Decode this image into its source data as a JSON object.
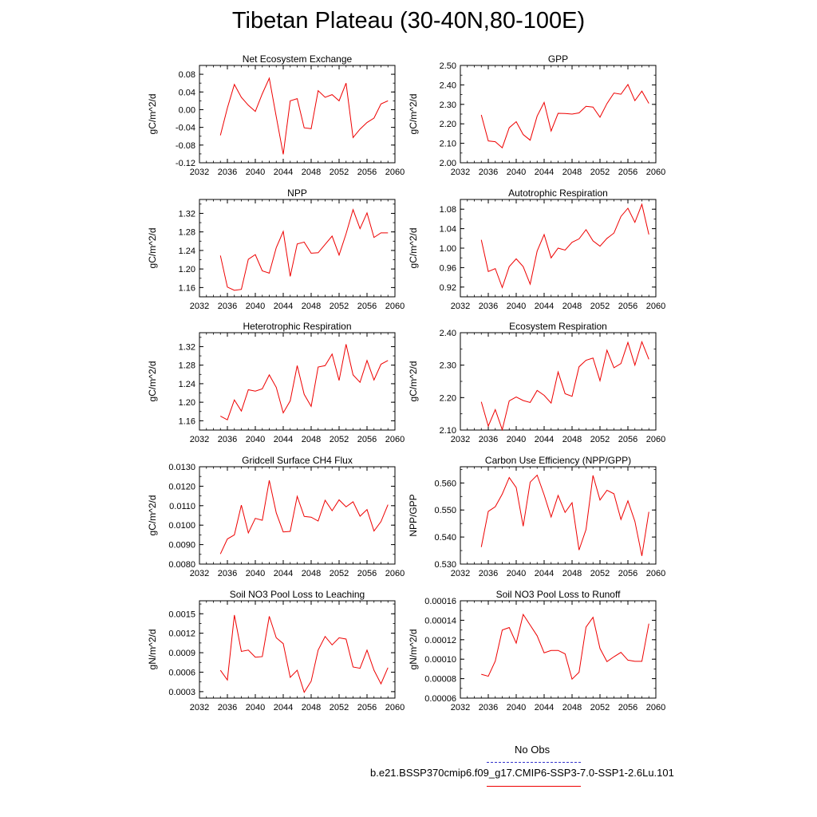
{
  "page": {
    "title": "Tibetan Plateau (30-40N,80-100E)"
  },
  "legend": {
    "items": [
      {
        "label": "No Obs",
        "color": "#3333cc",
        "style": "dashed"
      },
      {
        "label": "b.e21.BSSP370cmip6.f09_g17.CMIP6-SSP3-7.0-SSP1-2.6Lu.101",
        "color": "#ee0000",
        "style": "solid"
      }
    ]
  },
  "chart_data": [
    {
      "type": "line",
      "title": "Net Ecosystem Exchange",
      "ylabel": "gC/m^2/d",
      "xlabel": "",
      "xlim": [
        2032,
        2060
      ],
      "ylim": [
        -0.12,
        0.1
      ],
      "xticks": [
        2032,
        2036,
        2040,
        2044,
        2048,
        2052,
        2056,
        2060
      ],
      "yticks": [
        "-0.12",
        "-0.08",
        "-0.04",
        "0.00",
        "0.04",
        "0.08"
      ],
      "x": [
        2035,
        2036,
        2037,
        2038,
        2039,
        2040,
        2041,
        2042,
        2043,
        2044,
        2045,
        2046,
        2047,
        2048,
        2049,
        2050,
        2051,
        2052,
        2053,
        2054,
        2055,
        2056,
        2057,
        2058,
        2059
      ],
      "series": [
        {
          "values": [
            -0.058,
            0.004,
            0.057,
            0.028,
            0.01,
            -0.004,
            0.036,
            0.071,
            -0.016,
            -0.101,
            0.02,
            0.025,
            -0.041,
            -0.043,
            0.043,
            0.028,
            0.034,
            0.02,
            0.06,
            -0.063,
            -0.044,
            -0.029,
            -0.019,
            0.013,
            0.02
          ]
        }
      ]
    },
    {
      "type": "line",
      "title": "GPP",
      "ylabel": "gC/m^2/d",
      "xlabel": "",
      "xlim": [
        2032,
        2060
      ],
      "ylim": [
        2.0,
        2.5
      ],
      "xticks": [
        2032,
        2036,
        2040,
        2044,
        2048,
        2052,
        2056,
        2060
      ],
      "yticks": [
        "2.00",
        "2.10",
        "2.20",
        "2.30",
        "2.40",
        "2.50"
      ],
      "x": [
        2035,
        2036,
        2037,
        2038,
        2039,
        2040,
        2041,
        2042,
        2043,
        2044,
        2045,
        2046,
        2047,
        2048,
        2049,
        2050,
        2051,
        2052,
        2053,
        2054,
        2055,
        2056,
        2057,
        2058,
        2059
      ],
      "series": [
        {
          "values": [
            2.246,
            2.112,
            2.108,
            2.077,
            2.18,
            2.211,
            2.145,
            2.116,
            2.24,
            2.31,
            2.163,
            2.254,
            2.253,
            2.25,
            2.256,
            2.29,
            2.286,
            2.234,
            2.304,
            2.358,
            2.352,
            2.402,
            2.319,
            2.368,
            2.305
          ]
        }
      ]
    },
    {
      "type": "line",
      "title": "NPP",
      "ylabel": "gC/m^2/d",
      "xlabel": "",
      "xlim": [
        2032,
        2060
      ],
      "ylim": [
        1.14,
        1.35
      ],
      "xticks": [
        2032,
        2036,
        2040,
        2044,
        2048,
        2052,
        2056,
        2060
      ],
      "yticks": [
        "1.16",
        "1.20",
        "1.24",
        "1.28",
        "1.32"
      ],
      "x": [
        2035,
        2036,
        2037,
        2038,
        2039,
        2040,
        2041,
        2042,
        2043,
        2044,
        2045,
        2046,
        2047,
        2048,
        2049,
        2050,
        2051,
        2052,
        2053,
        2054,
        2055,
        2056,
        2057,
        2058,
        2059
      ],
      "series": [
        {
          "values": [
            1.229,
            1.161,
            1.154,
            1.156,
            1.221,
            1.231,
            1.196,
            1.191,
            1.246,
            1.281,
            1.184,
            1.254,
            1.258,
            1.234,
            1.235,
            1.253,
            1.271,
            1.23,
            1.276,
            1.328,
            1.287,
            1.321,
            1.268,
            1.278,
            1.278
          ]
        }
      ]
    },
    {
      "type": "line",
      "title": "Autotrophic Respiration",
      "ylabel": "gC/m^2/d",
      "xlabel": "",
      "xlim": [
        2032,
        2060
      ],
      "ylim": [
        0.9,
        1.1
      ],
      "xticks": [
        2032,
        2036,
        2040,
        2044,
        2048,
        2052,
        2056,
        2060
      ],
      "yticks": [
        "0.92",
        "0.96",
        "1.00",
        "1.04",
        "1.08"
      ],
      "x": [
        2035,
        2036,
        2037,
        2038,
        2039,
        2040,
        2041,
        2042,
        2043,
        2044,
        2045,
        2046,
        2047,
        2048,
        2049,
        2050,
        2051,
        2052,
        2053,
        2054,
        2055,
        2056,
        2057,
        2058,
        2059
      ],
      "series": [
        {
          "values": [
            1.017,
            0.952,
            0.958,
            0.919,
            0.962,
            0.978,
            0.962,
            0.926,
            0.994,
            1.028,
            0.98,
            1.0,
            0.996,
            1.012,
            1.019,
            1.038,
            1.015,
            1.004,
            1.02,
            1.031,
            1.065,
            1.082,
            1.053,
            1.09,
            1.028
          ]
        }
      ]
    },
    {
      "type": "line",
      "title": "Heterotrophic Respiration",
      "ylabel": "gC/m^2/d",
      "xlabel": "",
      "xlim": [
        2032,
        2060
      ],
      "ylim": [
        1.14,
        1.35
      ],
      "xticks": [
        2032,
        2036,
        2040,
        2044,
        2048,
        2052,
        2056,
        2060
      ],
      "yticks": [
        "1.16",
        "1.20",
        "1.24",
        "1.28",
        "1.32"
      ],
      "x": [
        2035,
        2036,
        2037,
        2038,
        2039,
        2040,
        2041,
        2042,
        2043,
        2044,
        2045,
        2046,
        2047,
        2048,
        2049,
        2050,
        2051,
        2052,
        2053,
        2054,
        2055,
        2056,
        2057,
        2058,
        2059
      ],
      "series": [
        {
          "values": [
            1.17,
            1.162,
            1.205,
            1.181,
            1.227,
            1.224,
            1.229,
            1.259,
            1.232,
            1.177,
            1.203,
            1.279,
            1.217,
            1.191,
            1.276,
            1.279,
            1.304,
            1.247,
            1.325,
            1.259,
            1.243,
            1.29,
            1.248,
            1.282,
            1.29
          ]
        }
      ]
    },
    {
      "type": "line",
      "title": "Ecosystem Respiration",
      "ylabel": "gC/m^2/d",
      "xlabel": "",
      "xlim": [
        2032,
        2060
      ],
      "ylim": [
        2.1,
        2.4
      ],
      "xticks": [
        2032,
        2036,
        2040,
        2044,
        2048,
        2052,
        2056,
        2060
      ],
      "yticks": [
        "2.10",
        "2.20",
        "2.30",
        "2.40"
      ],
      "x": [
        2035,
        2036,
        2037,
        2038,
        2039,
        2040,
        2041,
        2042,
        2043,
        2044,
        2045,
        2046,
        2047,
        2048,
        2049,
        2050,
        2051,
        2052,
        2053,
        2054,
        2055,
        2056,
        2057,
        2058,
        2059
      ],
      "series": [
        {
          "values": [
            2.187,
            2.112,
            2.163,
            2.101,
            2.19,
            2.202,
            2.191,
            2.185,
            2.222,
            2.207,
            2.183,
            2.279,
            2.212,
            2.204,
            2.295,
            2.315,
            2.322,
            2.252,
            2.346,
            2.292,
            2.305,
            2.37,
            2.3,
            2.372,
            2.318
          ]
        }
      ]
    },
    {
      "type": "line",
      "title": "Gridcell Surface CH4 Flux",
      "ylabel": "gC/m^2/d",
      "xlabel": "",
      "xlim": [
        2032,
        2060
      ],
      "ylim": [
        0.008,
        0.013
      ],
      "xticks": [
        2032,
        2036,
        2040,
        2044,
        2048,
        2052,
        2056,
        2060
      ],
      "yticks": [
        "0.0080",
        "0.0090",
        "0.0100",
        "0.0110",
        "0.0120",
        "0.0130"
      ],
      "x": [
        2035,
        2036,
        2037,
        2038,
        2039,
        2040,
        2041,
        2042,
        2043,
        2044,
        2045,
        2046,
        2047,
        2048,
        2049,
        2050,
        2051,
        2052,
        2053,
        2054,
        2055,
        2056,
        2057,
        2058,
        2059
      ],
      "series": [
        {
          "values": [
            0.00852,
            0.00929,
            0.0095,
            0.01103,
            0.0096,
            0.01035,
            0.01025,
            0.0123,
            0.01063,
            0.00965,
            0.00968,
            0.01148,
            0.01045,
            0.01041,
            0.01021,
            0.01128,
            0.01074,
            0.0113,
            0.01094,
            0.0112,
            0.01046,
            0.0108,
            0.0097,
            0.01018,
            0.01105
          ]
        }
      ]
    },
    {
      "type": "line",
      "title": "Carbon Use Efficiency (NPP/GPP)",
      "ylabel": "NPP/GPP",
      "xlabel": "",
      "xlim": [
        2032,
        2060
      ],
      "ylim": [
        0.53,
        0.566
      ],
      "xticks": [
        2032,
        2036,
        2040,
        2044,
        2048,
        2052,
        2056,
        2060
      ],
      "yticks": [
        "0.530",
        "0.540",
        "0.550",
        "0.560"
      ],
      "x": [
        2035,
        2036,
        2037,
        2038,
        2039,
        2040,
        2041,
        2042,
        2043,
        2044,
        2045,
        2046,
        2047,
        2048,
        2049,
        2050,
        2051,
        2052,
        2053,
        2054,
        2055,
        2056,
        2057,
        2058,
        2059
      ],
      "series": [
        {
          "values": [
            0.5363,
            0.5495,
            0.5512,
            0.5559,
            0.562,
            0.5583,
            0.544,
            0.5603,
            0.5629,
            0.5556,
            0.5474,
            0.5554,
            0.5491,
            0.5527,
            0.5352,
            0.5428,
            0.5628,
            0.5537,
            0.5573,
            0.556,
            0.5465,
            0.5534,
            0.5458,
            0.533,
            0.5493
          ]
        }
      ]
    },
    {
      "type": "line",
      "title": "Soil NO3 Pool Loss to Leaching",
      "ylabel": "gN/m^2/d",
      "xlabel": "",
      "xlim": [
        2032,
        2060
      ],
      "ylim": [
        0.0002,
        0.0017
      ],
      "xticks": [
        2032,
        2036,
        2040,
        2044,
        2048,
        2052,
        2056,
        2060
      ],
      "yticks": [
        "0.0003",
        "0.0006",
        "0.0009",
        "0.0012",
        "0.0015"
      ],
      "x": [
        2035,
        2036,
        2037,
        2038,
        2039,
        2040,
        2041,
        2042,
        2043,
        2044,
        2045,
        2046,
        2047,
        2048,
        2049,
        2050,
        2051,
        2052,
        2053,
        2054,
        2055,
        2056,
        2057,
        2058,
        2059
      ],
      "series": [
        {
          "values": [
            0.00063,
            0.00048,
            0.00148,
            0.00092,
            0.00094,
            0.00083,
            0.00084,
            0.00146,
            0.00113,
            0.00104,
            0.00052,
            0.00063,
            0.00029,
            0.00046,
            0.00094,
            0.00115,
            0.00102,
            0.00113,
            0.00111,
            0.00068,
            0.00066,
            0.00094,
            0.00063,
            0.00042,
            0.00067
          ]
        }
      ]
    },
    {
      "type": "line",
      "title": "Soil NO3 Pool Loss to Runoff",
      "ylabel": "gN/m^2/d",
      "xlabel": "",
      "xlim": [
        2032,
        2060
      ],
      "ylim": [
        6e-05,
        0.00016
      ],
      "xticks": [
        2032,
        2036,
        2040,
        2044,
        2048,
        2052,
        2056,
        2060
      ],
      "yticks": [
        "0.00006",
        "0.00008",
        "0.00010",
        "0.00012",
        "0.00014",
        "0.00016"
      ],
      "x": [
        2035,
        2036,
        2037,
        2038,
        2039,
        2040,
        2041,
        2042,
        2043,
        2044,
        2045,
        2046,
        2047,
        2048,
        2049,
        2050,
        2051,
        2052,
        2053,
        2054,
        2055,
        2056,
        2057,
        2058,
        2059
      ],
      "series": [
        {
          "values": [
            8.45e-05,
            8.25e-05,
            9.8e-05,
            0.00013,
            0.0001325,
            0.0001165,
            0.000146,
            0.000135,
            0.000124,
            0.0001065,
            0.000109,
            0.000109,
            0.0001055,
            7.95e-05,
            8.65e-05,
            0.000133,
            0.000143,
            0.000111,
            9.75e-05,
            0.0001025,
            0.000107,
            9.9e-05,
            9.78e-05,
            9.78e-05,
            0.0001365
          ]
        }
      ]
    }
  ]
}
